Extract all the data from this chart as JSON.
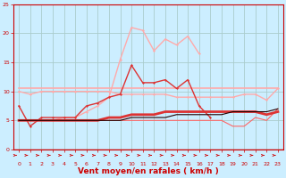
{
  "xlabel": "Vent moyen/en rafales ( km/h )",
  "bg_color": "#cceeff",
  "grid_color": "#aacccc",
  "xlim": [
    -0.5,
    23.5
  ],
  "ylim": [
    0,
    25
  ],
  "xticks": [
    0,
    1,
    2,
    3,
    4,
    5,
    6,
    7,
    8,
    9,
    10,
    11,
    12,
    13,
    14,
    15,
    16,
    17,
    18,
    19,
    20,
    21,
    22,
    23
  ],
  "yticks": [
    0,
    5,
    10,
    15,
    20,
    25
  ],
  "series": [
    {
      "x": [
        0,
        1,
        2,
        3,
        4,
        5,
        6,
        7,
        8,
        9,
        10,
        11,
        12,
        13,
        14,
        15,
        16,
        17,
        18,
        19,
        20,
        21,
        22,
        23
      ],
      "y": [
        10.5,
        10.5,
        10.5,
        10.5,
        10.5,
        10.5,
        10.5,
        10.5,
        10.5,
        10.5,
        10.5,
        10.5,
        10.5,
        10.5,
        10.5,
        10.5,
        10.5,
        10.5,
        10.5,
        10.5,
        10.5,
        10.5,
        10.5,
        10.5
      ],
      "color": "#ffaaaa",
      "lw": 1.2,
      "marker": null,
      "zorder": 2
    },
    {
      "x": [
        0,
        1,
        2,
        3,
        4,
        5,
        6,
        7,
        8,
        9,
        10,
        11,
        12,
        13,
        14,
        15,
        16,
        17,
        18,
        19,
        20,
        21,
        22,
        23
      ],
      "y": [
        10.0,
        9.5,
        10.0,
        10.0,
        10.0,
        10.0,
        10.0,
        10.0,
        10.0,
        9.5,
        9.5,
        9.5,
        9.5,
        9.5,
        9.0,
        9.0,
        9.0,
        9.0,
        9.0,
        9.0,
        9.5,
        9.5,
        8.5,
        10.5
      ],
      "color": "#ffaaaa",
      "lw": 1.0,
      "marker": "D",
      "ms": 1.5,
      "zorder": 2
    },
    {
      "x": [
        3,
        4,
        5,
        6,
        7,
        8,
        9,
        10,
        11,
        12,
        13,
        14,
        15,
        16
      ],
      "y": [
        5.0,
        5.5,
        5.5,
        6.5,
        7.5,
        9.0,
        15.5,
        21.0,
        20.5,
        17.0,
        19.0,
        18.0,
        19.5,
        16.5
      ],
      "color": "#ffaaaa",
      "lw": 1.0,
      "marker": "D",
      "ms": 1.5,
      "zorder": 2
    },
    {
      "x": [
        0,
        1,
        2,
        3,
        4,
        5,
        6,
        7,
        8,
        9,
        10,
        11,
        12,
        13,
        14,
        15,
        16,
        17
      ],
      "y": [
        7.5,
        4.0,
        5.5,
        5.5,
        5.5,
        5.5,
        7.5,
        8.0,
        9.0,
        9.5,
        14.5,
        11.5,
        11.5,
        12.0,
        10.5,
        12.0,
        7.5,
        5.5
      ],
      "color": "#dd3333",
      "lw": 1.0,
      "marker": "D",
      "ms": 1.5,
      "zorder": 3
    },
    {
      "x": [
        0,
        1,
        2,
        3,
        4,
        5,
        6,
        7,
        8,
        9,
        10,
        11,
        12,
        13,
        14,
        15,
        16,
        17,
        18,
        19,
        20,
        21,
        22,
        23
      ],
      "y": [
        5.0,
        5.0,
        5.0,
        5.0,
        5.0,
        5.0,
        5.0,
        5.0,
        5.5,
        5.5,
        6.0,
        6.0,
        6.0,
        6.5,
        6.5,
        6.5,
        6.5,
        6.5,
        6.5,
        6.5,
        6.5,
        6.5,
        6.0,
        6.5
      ],
      "color": "#dd3333",
      "lw": 2.0,
      "marker": null,
      "zorder": 3
    },
    {
      "x": [
        0,
        1,
        2,
        3,
        4,
        5,
        6,
        7,
        8,
        9,
        10,
        11,
        12,
        13,
        14,
        15,
        16,
        17,
        18,
        19,
        20,
        21,
        22,
        23
      ],
      "y": [
        5.0,
        5.0,
        5.0,
        5.0,
        5.0,
        5.0,
        5.0,
        5.0,
        5.0,
        5.0,
        5.0,
        5.0,
        5.0,
        5.0,
        5.0,
        5.0,
        5.0,
        5.0,
        5.0,
        4.0,
        4.0,
        5.5,
        5.0,
        7.0
      ],
      "color": "#ff6666",
      "lw": 0.8,
      "marker": null,
      "zorder": 2
    },
    {
      "x": [
        0,
        1,
        2,
        3,
        4,
        5,
        6,
        7,
        8,
        9,
        10,
        11,
        12,
        13,
        14,
        15,
        16,
        17,
        18,
        19,
        20,
        21,
        22,
        23
      ],
      "y": [
        5.0,
        5.0,
        5.0,
        5.0,
        5.0,
        5.0,
        5.0,
        5.0,
        5.0,
        5.0,
        5.5,
        5.5,
        5.5,
        5.5,
        6.0,
        6.0,
        6.0,
        6.0,
        6.0,
        6.5,
        6.5,
        6.5,
        6.5,
        7.0
      ],
      "color": "#220000",
      "lw": 0.8,
      "marker": null,
      "zorder": 4
    }
  ],
  "arrow_color": "#cc0000",
  "tick_color": "#cc0000",
  "xlabel_color": "#cc0000",
  "spine_color": "#cc0000",
  "xlabel_fontsize": 6.5,
  "tick_fontsize": 4.5
}
